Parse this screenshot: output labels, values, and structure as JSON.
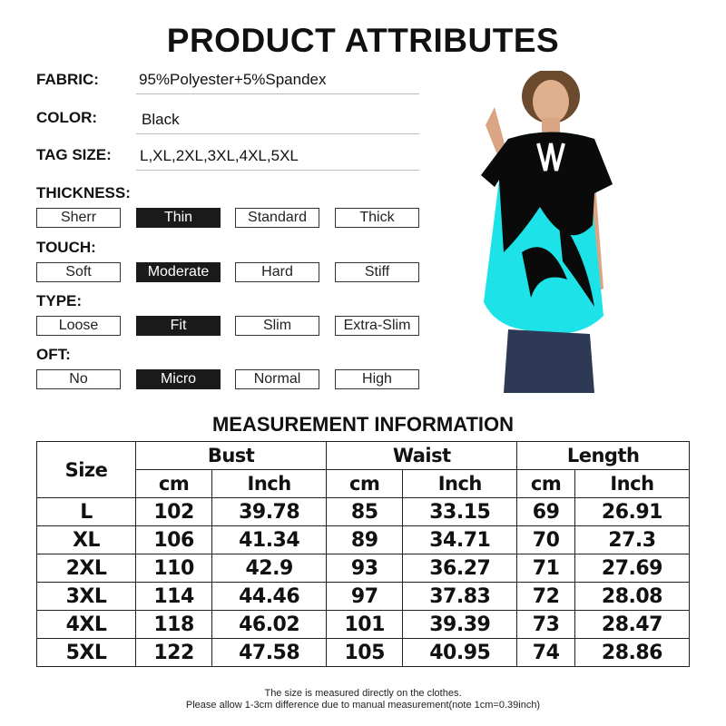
{
  "title": "PRODUCT ATTRIBUTES",
  "attributes": [
    {
      "label": "FABRIC:",
      "value": "95%Polyester+5%Spandex"
    },
    {
      "label": "COLOR:",
      "value": "Black"
    },
    {
      "label": "TAG SIZE:",
      "value": "L,XL,2XL,3XL,4XL,5XL"
    }
  ],
  "option_groups": [
    {
      "label": "THICKNESS:",
      "options": [
        "Sherr",
        "Thin",
        "Standard",
        "Thick"
      ],
      "selected": 1
    },
    {
      "label": "TOUCH:",
      "options": [
        "Soft",
        "Moderate",
        "Hard",
        "Stiff"
      ],
      "selected": 1
    },
    {
      "label": "TYPE:",
      "options": [
        "Loose",
        "Fit",
        "Slim",
        "Extra-Slim"
      ],
      "selected": 1
    },
    {
      "label": "OFT:",
      "options": [
        "No",
        "Micro",
        "Normal",
        "High"
      ],
      "selected": 1
    }
  ],
  "product_colors": {
    "print": "#1de3e8",
    "base": "#0a0a0a"
  },
  "measurement": {
    "title": "MEASUREMENT INFORMATION",
    "size_header": "Size",
    "groups": [
      "Bust",
      "Waist",
      "Length"
    ],
    "units": [
      "cm",
      "Inch",
      "cm",
      "Inch",
      "cm",
      "Inch"
    ],
    "rows": [
      [
        "L",
        "102",
        "39.78",
        "85",
        "33.15",
        "69",
        "26.91"
      ],
      [
        "XL",
        "106",
        "41.34",
        "89",
        "34.71",
        "70",
        "27.3"
      ],
      [
        "2XL",
        "110",
        "42.9",
        "93",
        "36.27",
        "71",
        "27.69"
      ],
      [
        "3XL",
        "114",
        "44.46",
        "97",
        "37.83",
        "72",
        "28.08"
      ],
      [
        "4XL",
        "118",
        "46.02",
        "101",
        "39.39",
        "73",
        "28.47"
      ],
      [
        "5XL",
        "122",
        "47.58",
        "105",
        "40.95",
        "74",
        "28.86"
      ]
    ],
    "notes": [
      "The size is measured directly on the clothes.",
      "Please allow 1-3cm difference due to manual measurement(note 1cm=0.39inch)"
    ]
  }
}
